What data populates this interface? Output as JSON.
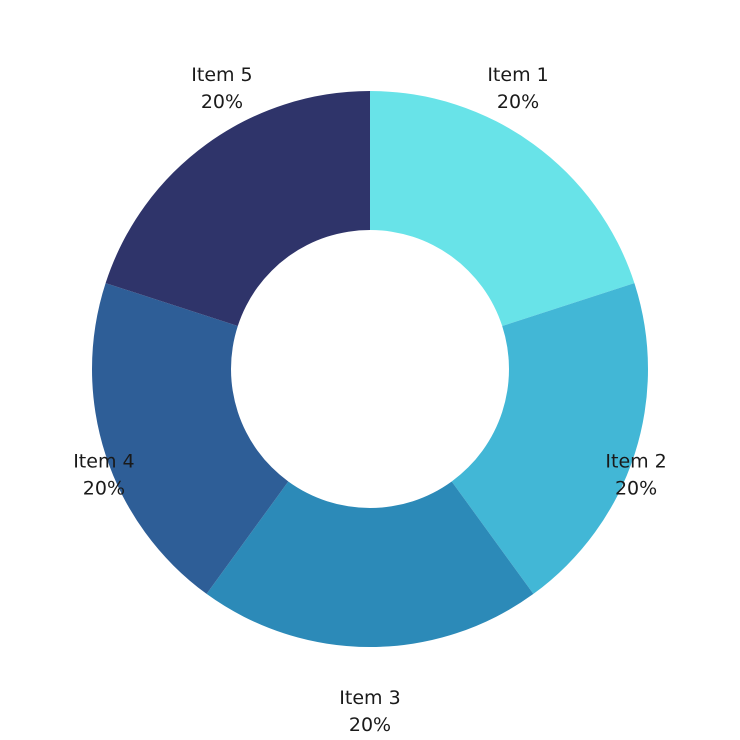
{
  "chart_data": {
    "type": "pie",
    "variant": "donut",
    "title": "",
    "categories": [
      "Item 1",
      "Item 2",
      "Item 3",
      "Item 4",
      "Item 5"
    ],
    "values": [
      20,
      20,
      20,
      20,
      20
    ],
    "value_labels": [
      "20%",
      "20%",
      "20%",
      "20%",
      "20%"
    ],
    "colors": [
      "#68E3E8",
      "#42B7D6",
      "#2C8AB8",
      "#2E5E97",
      "#2F346A"
    ],
    "start_angle_deg": 0,
    "direction": "clockwise",
    "legend": "none"
  }
}
